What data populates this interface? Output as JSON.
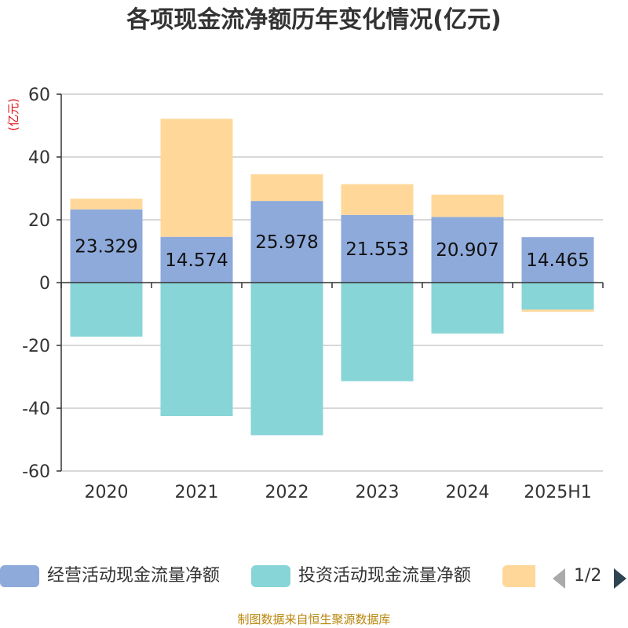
{
  "title": "各项现金流净额历年变化情况(亿元)",
  "footer": "制图数据来自恒生聚源数据库",
  "legend": {
    "page": "1/2",
    "items": [
      {
        "label": "经营活动现金流量净额",
        "color": "#8eaadb"
      },
      {
        "label": "投资活动现金流量净额",
        "color": "#87d5d7"
      },
      {
        "label": "",
        "color": "#ffd899"
      }
    ]
  },
  "chart_data": {
    "type": "bar",
    "stacked": true,
    "ylabel": "(亿元)",
    "ylim": [
      -60,
      60
    ],
    "yticks": [
      60,
      40,
      20,
      0,
      -20,
      -40,
      -60
    ],
    "categories": [
      "2020",
      "2021",
      "2022",
      "2023",
      "2024",
      "2025H1"
    ],
    "series": [
      {
        "name": "经营活动现金流量净额",
        "color": "#8eaadb",
        "values": [
          23.329,
          14.574,
          25.978,
          21.553,
          20.907,
          14.465
        ],
        "labels": [
          "23.329",
          "14.574",
          "25.978",
          "21.553",
          "20.907",
          "14.465"
        ]
      },
      {
        "name": "投资活动现金流量净额",
        "color": "#87d5d7",
        "values": [
          -17.2,
          -42.5,
          -48.6,
          -31.4,
          -16.2,
          -8.6
        ]
      },
      {
        "color": "#ffd899",
        "values": [
          3.4,
          37.6,
          8.5,
          9.8,
          7.1,
          -0.7
        ]
      }
    ]
  }
}
